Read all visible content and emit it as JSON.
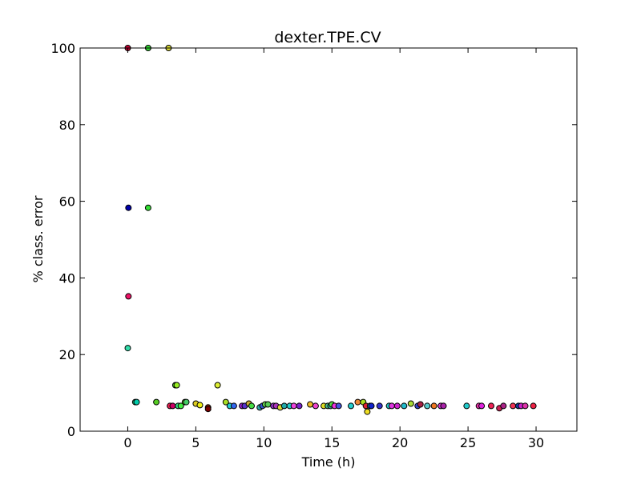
{
  "chart_data": {
    "type": "scatter",
    "title": "dexter.TPE.CV",
    "xlabel": "Time (h)",
    "ylabel": "% class. error",
    "xlim": [
      -3.5,
      33
    ],
    "ylim": [
      0,
      100
    ],
    "xticks": [
      0,
      5,
      10,
      15,
      20,
      25,
      30
    ],
    "yticks": [
      0,
      20,
      40,
      60,
      80,
      100
    ],
    "xtick_labels": [
      "0",
      "5",
      "10",
      "15",
      "20",
      "25",
      "30"
    ],
    "ytick_labels": [
      "0",
      "20",
      "40",
      "60",
      "80",
      "100"
    ],
    "grid": false,
    "legend": "none",
    "points": [
      {
        "x": 0.0,
        "y": 100,
        "color": "#cc0033"
      },
      {
        "x": 1.5,
        "y": 100,
        "color": "#33dd33"
      },
      {
        "x": 3.0,
        "y": 100,
        "color": "#dddd33"
      },
      {
        "x": 0.05,
        "y": 58.3,
        "color": "#0000aa"
      },
      {
        "x": 1.5,
        "y": 58.3,
        "color": "#33dd33"
      },
      {
        "x": 0.05,
        "y": 35.2,
        "color": "#ee1166"
      },
      {
        "x": 0.0,
        "y": 21.7,
        "color": "#33ddaa"
      },
      {
        "x": 3.5,
        "y": 12.0,
        "color": "#55dd22"
      },
      {
        "x": 3.6,
        "y": 12.0,
        "color": "#99ee22"
      },
      {
        "x": 6.6,
        "y": 12.0,
        "color": "#ddee33"
      },
      {
        "x": 0.55,
        "y": 7.6,
        "color": "#22bb77"
      },
      {
        "x": 0.65,
        "y": 7.6,
        "color": "#00ccaa"
      },
      {
        "x": 2.1,
        "y": 7.6,
        "color": "#55cc22"
      },
      {
        "x": 4.2,
        "y": 7.6,
        "color": "#77dd22"
      },
      {
        "x": 4.3,
        "y": 7.6,
        "color": "#44cc66"
      },
      {
        "x": 7.2,
        "y": 7.6,
        "color": "#aadd22"
      },
      {
        "x": 3.1,
        "y": 6.6,
        "color": "#ee2255"
      },
      {
        "x": 3.3,
        "y": 6.6,
        "color": "#cc0066"
      },
      {
        "x": 3.7,
        "y": 6.6,
        "color": "#33dd88"
      },
      {
        "x": 3.9,
        "y": 6.6,
        "color": "#44ee44"
      },
      {
        "x": 5.0,
        "y": 7.2,
        "color": "#ddcc22"
      },
      {
        "x": 5.3,
        "y": 6.8,
        "color": "#eeee11"
      },
      {
        "x": 5.9,
        "y": 6.2,
        "color": "#aa2200"
      },
      {
        "x": 5.9,
        "y": 5.8,
        "color": "#770000"
      },
      {
        "x": 7.5,
        "y": 6.6,
        "color": "#22cccc"
      },
      {
        "x": 7.8,
        "y": 6.6,
        "color": "#3366ee"
      },
      {
        "x": 8.4,
        "y": 6.6,
        "color": "#9922cc"
      },
      {
        "x": 8.6,
        "y": 6.6,
        "color": "#5533cc"
      },
      {
        "x": 8.9,
        "y": 7.2,
        "color": "#ccaa33"
      },
      {
        "x": 9.1,
        "y": 6.6,
        "color": "#44dd44"
      },
      {
        "x": 9.7,
        "y": 6.2,
        "color": "#33aaaa"
      },
      {
        "x": 9.9,
        "y": 6.6,
        "color": "#3355cc"
      },
      {
        "x": 10.1,
        "y": 7.0,
        "color": "#66dd55"
      },
      {
        "x": 10.3,
        "y": 7.0,
        "color": "#55cc55"
      },
      {
        "x": 10.7,
        "y": 6.6,
        "color": "#9933cc"
      },
      {
        "x": 10.9,
        "y": 6.6,
        "color": "#aa33bb"
      },
      {
        "x": 11.2,
        "y": 6.2,
        "color": "#dddd33"
      },
      {
        "x": 11.5,
        "y": 6.6,
        "color": "#22aaaa"
      },
      {
        "x": 11.9,
        "y": 6.6,
        "color": "#22cccc"
      },
      {
        "x": 12.2,
        "y": 6.6,
        "color": "#ee44dd"
      },
      {
        "x": 12.6,
        "y": 6.6,
        "color": "#7722cc"
      },
      {
        "x": 13.4,
        "y": 7.0,
        "color": "#eebb22"
      },
      {
        "x": 13.8,
        "y": 6.6,
        "color": "#ee44cc"
      },
      {
        "x": 14.4,
        "y": 6.6,
        "color": "#dddd22"
      },
      {
        "x": 14.7,
        "y": 6.6,
        "color": "#44bb88"
      },
      {
        "x": 14.9,
        "y": 6.6,
        "color": "#33aaaa"
      },
      {
        "x": 15.0,
        "y": 7.0,
        "color": "#55dd44"
      },
      {
        "x": 15.2,
        "y": 6.6,
        "color": "#ee33dd"
      },
      {
        "x": 15.5,
        "y": 6.6,
        "color": "#4455dd"
      },
      {
        "x": 16.4,
        "y": 6.6,
        "color": "#22cccc"
      },
      {
        "x": 16.9,
        "y": 7.6,
        "color": "#ee8833"
      },
      {
        "x": 17.3,
        "y": 7.6,
        "color": "#aadd22"
      },
      {
        "x": 17.5,
        "y": 6.6,
        "color": "#dd2233"
      },
      {
        "x": 17.6,
        "y": 5.1,
        "color": "#eedd22"
      },
      {
        "x": 17.8,
        "y": 6.6,
        "color": "#22bbbb"
      },
      {
        "x": 17.9,
        "y": 6.6,
        "color": "#1122cc"
      },
      {
        "x": 18.5,
        "y": 6.6,
        "color": "#3333cc"
      },
      {
        "x": 19.2,
        "y": 6.6,
        "color": "#22cccc"
      },
      {
        "x": 19.4,
        "y": 6.6,
        "color": "#dd33dd"
      },
      {
        "x": 19.8,
        "y": 6.6,
        "color": "#cc22cc"
      },
      {
        "x": 20.3,
        "y": 6.6,
        "color": "#22bbcc"
      },
      {
        "x": 20.8,
        "y": 7.2,
        "color": "#aadd33"
      },
      {
        "x": 21.3,
        "y": 6.6,
        "color": "#3344cc"
      },
      {
        "x": 21.5,
        "y": 7.0,
        "color": "#aa2244"
      },
      {
        "x": 22.0,
        "y": 6.6,
        "color": "#55cccc"
      },
      {
        "x": 22.5,
        "y": 6.6,
        "color": "#ee7722"
      },
      {
        "x": 23.0,
        "y": 6.6,
        "color": "#cc33cc"
      },
      {
        "x": 23.2,
        "y": 6.6,
        "color": "#aa22aa"
      },
      {
        "x": 24.9,
        "y": 6.6,
        "color": "#22cccc"
      },
      {
        "x": 25.8,
        "y": 6.6,
        "color": "#ee33aa"
      },
      {
        "x": 26.0,
        "y": 6.6,
        "color": "#dd22dd"
      },
      {
        "x": 26.7,
        "y": 6.6,
        "color": "#ee2255"
      },
      {
        "x": 27.3,
        "y": 6.0,
        "color": "#cc2255"
      },
      {
        "x": 27.6,
        "y": 6.6,
        "color": "#aa2288"
      },
      {
        "x": 28.3,
        "y": 6.6,
        "color": "#ee3355"
      },
      {
        "x": 28.7,
        "y": 6.6,
        "color": "#1144aa"
      },
      {
        "x": 28.9,
        "y": 6.6,
        "color": "#cc22cc"
      },
      {
        "x": 29.2,
        "y": 6.6,
        "color": "#dd33aa"
      },
      {
        "x": 29.8,
        "y": 6.6,
        "color": "#ee2244"
      }
    ]
  }
}
